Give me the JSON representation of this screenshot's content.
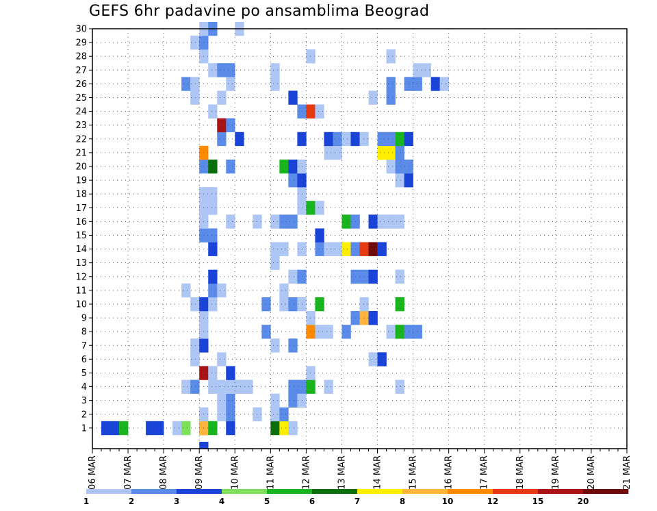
{
  "chart_data": {
    "type": "heatmap",
    "title": "GEFS 6hr padavine po ansamblima Beograd",
    "xlabel": "",
    "ylabel": "",
    "x_ticks": [
      "06 MAR",
      "07 MAR",
      "08 MAR",
      "09 MAR",
      "10 MAR",
      "11 MAR",
      "12 MAR",
      "13 MAR",
      "14 MAR",
      "15 MAR",
      "16 MAR",
      "17 MAR",
      "18 MAR",
      "19 MAR",
      "20 MAR",
      "21 MAR"
    ],
    "y_ticks": [
      "1",
      "2",
      "3",
      "4",
      "5",
      "6",
      "7",
      "8",
      "9",
      "10",
      "11",
      "12",
      "13",
      "14",
      "15",
      "16",
      "17",
      "18",
      "19",
      "20",
      "21",
      "22",
      "23",
      "24",
      "25",
      "26",
      "27",
      "28",
      "29",
      "30"
    ],
    "x_step": "6hr",
    "ensemble_members": 30,
    "grid": true,
    "legend": {
      "placement": "bottom",
      "labels": [
        "1",
        "2",
        "3",
        "4",
        "5",
        "6",
        "7",
        "8",
        "10",
        "12",
        "15",
        "20"
      ],
      "colors": [
        "#aec6f4",
        "#5b8be8",
        "#1a44d8",
        "#7ee05a",
        "#19b41e",
        "#0a6e0a",
        "#ffee00",
        "#ffb43c",
        "#ff8a00",
        "#e63a12",
        "#a81414",
        "#6e0a0a"
      ]
    },
    "cells": [
      [
        1,
        1,
        3
      ],
      [
        1,
        2,
        3
      ],
      [
        1,
        3,
        5
      ],
      [
        1,
        6,
        3
      ],
      [
        1,
        7,
        3
      ],
      [
        1,
        9,
        1
      ],
      [
        1,
        10,
        4
      ],
      [
        1,
        12,
        10
      ],
      [
        1,
        12,
        10
      ],
      [
        0,
        12,
        3
      ],
      [
        1,
        12,
        8
      ],
      [
        1,
        13,
        5
      ],
      [
        1,
        15,
        3
      ],
      [
        1,
        20,
        6
      ],
      [
        1,
        21,
        7
      ],
      [
        1,
        22,
        1
      ],
      [
        2,
        12,
        1
      ],
      [
        2,
        14,
        1
      ],
      [
        2,
        15,
        2
      ],
      [
        2,
        18,
        1
      ],
      [
        2,
        20,
        1
      ],
      [
        2,
        21,
        2
      ],
      [
        3,
        14,
        1
      ],
      [
        3,
        15,
        2
      ],
      [
        3,
        20,
        1
      ],
      [
        3,
        22,
        2
      ],
      [
        3,
        23,
        1
      ],
      [
        4,
        10,
        1
      ],
      [
        4,
        11,
        2
      ],
      [
        4,
        13,
        1
      ],
      [
        4,
        14,
        1
      ],
      [
        4,
        15,
        1
      ],
      [
        4,
        16,
        1
      ],
      [
        4,
        17,
        1
      ],
      [
        4,
        22,
        2
      ],
      [
        4,
        23,
        2
      ],
      [
        4,
        24,
        5
      ],
      [
        4,
        26,
        1
      ],
      [
        4,
        34,
        1
      ],
      [
        5,
        12,
        15
      ],
      [
        5,
        13,
        1
      ],
      [
        5,
        15,
        3
      ],
      [
        5,
        24,
        1
      ],
      [
        6,
        11,
        1
      ],
      [
        6,
        14,
        1
      ],
      [
        6,
        31,
        1
      ],
      [
        6,
        32,
        3
      ],
      [
        7,
        11,
        1
      ],
      [
        7,
        12,
        3
      ],
      [
        7,
        20,
        1
      ],
      [
        7,
        22,
        2
      ],
      [
        8,
        12,
        1
      ],
      [
        8,
        19,
        2
      ],
      [
        8,
        24,
        10
      ],
      [
        8,
        25,
        1
      ],
      [
        8,
        26,
        1
      ],
      [
        8,
        28,
        2
      ],
      [
        8,
        33,
        1
      ],
      [
        8,
        34,
        5
      ],
      [
        8,
        35,
        2
      ],
      [
        8,
        36,
        2
      ],
      [
        9,
        12,
        1
      ],
      [
        9,
        24,
        1
      ],
      [
        9,
        29,
        2
      ],
      [
        9,
        30,
        8
      ],
      [
        9,
        31,
        3
      ],
      [
        10,
        11,
        1
      ],
      [
        10,
        12,
        3
      ],
      [
        10,
        13,
        1
      ],
      [
        10,
        19,
        2
      ],
      [
        10,
        21,
        1
      ],
      [
        10,
        22,
        2
      ],
      [
        10,
        23,
        1
      ],
      [
        10,
        25,
        5
      ],
      [
        10,
        30,
        1
      ],
      [
        10,
        34,
        5
      ],
      [
        11,
        10,
        1
      ],
      [
        11,
        13,
        2
      ],
      [
        11,
        14,
        1
      ],
      [
        11,
        21,
        1
      ],
      [
        12,
        13,
        3
      ],
      [
        12,
        22,
        1
      ],
      [
        12,
        23,
        2
      ],
      [
        12,
        29,
        2
      ],
      [
        12,
        30,
        2
      ],
      [
        12,
        31,
        3
      ],
      [
        12,
        34,
        1
      ],
      [
        13,
        20,
        1
      ],
      [
        14,
        13,
        3
      ],
      [
        14,
        20,
        1
      ],
      [
        14,
        21,
        1
      ],
      [
        14,
        23,
        1
      ],
      [
        14,
        25,
        2
      ],
      [
        14,
        26,
        1
      ],
      [
        14,
        27,
        1
      ],
      [
        14,
        28,
        7
      ],
      [
        14,
        29,
        2
      ],
      [
        14,
        30,
        12
      ],
      [
        14,
        31,
        20
      ],
      [
        14,
        32,
        3
      ],
      [
        15,
        12,
        2
      ],
      [
        15,
        13,
        2
      ],
      [
        15,
        25,
        3
      ],
      [
        16,
        12,
        1
      ],
      [
        16,
        15,
        1
      ],
      [
        16,
        18,
        1
      ],
      [
        16,
        20,
        1
      ],
      [
        16,
        21,
        2
      ],
      [
        16,
        22,
        2
      ],
      [
        16,
        28,
        5
      ],
      [
        16,
        29,
        2
      ],
      [
        16,
        31,
        3
      ],
      [
        16,
        32,
        1
      ],
      [
        16,
        33,
        1
      ],
      [
        16,
        34,
        1
      ],
      [
        17,
        12,
        1
      ],
      [
        17,
        13,
        1
      ],
      [
        17,
        23,
        1
      ],
      [
        17,
        24,
        5
      ],
      [
        17,
        25,
        1
      ],
      [
        18,
        12,
        1
      ],
      [
        18,
        13,
        1
      ],
      [
        18,
        23,
        1
      ],
      [
        19,
        22,
        2
      ],
      [
        19,
        23,
        3
      ],
      [
        19,
        34,
        1
      ],
      [
        19,
        35,
        3
      ],
      [
        20,
        12,
        2
      ],
      [
        20,
        13,
        6
      ],
      [
        20,
        15,
        2
      ],
      [
        20,
        21,
        5
      ],
      [
        20,
        22,
        3
      ],
      [
        20,
        23,
        1
      ],
      [
        20,
        33,
        1
      ],
      [
        20,
        34,
        2
      ],
      [
        20,
        35,
        2
      ],
      [
        21,
        12,
        10
      ],
      [
        21,
        26,
        1
      ],
      [
        21,
        27,
        1
      ],
      [
        21,
        32,
        7
      ],
      [
        21,
        33,
        7
      ],
      [
        21,
        34,
        2
      ],
      [
        22,
        14,
        2
      ],
      [
        22,
        16,
        3
      ],
      [
        22,
        23,
        3
      ],
      [
        22,
        26,
        3
      ],
      [
        22,
        27,
        2
      ],
      [
        22,
        28,
        1
      ],
      [
        22,
        29,
        3
      ],
      [
        22,
        30,
        1
      ],
      [
        22,
        32,
        2
      ],
      [
        22,
        33,
        2
      ],
      [
        22,
        34,
        5
      ],
      [
        22,
        35,
        3
      ],
      [
        23,
        14,
        15
      ],
      [
        23,
        15,
        2
      ],
      [
        24,
        13,
        1
      ],
      [
        24,
        23,
        2
      ],
      [
        24,
        24,
        12
      ],
      [
        24,
        25,
        1
      ],
      [
        25,
        11,
        1
      ],
      [
        25,
        14,
        1
      ],
      [
        25,
        22,
        3
      ],
      [
        25,
        31,
        1
      ],
      [
        25,
        33,
        2
      ],
      [
        26,
        10,
        2
      ],
      [
        26,
        11,
        1
      ],
      [
        26,
        15,
        1
      ],
      [
        26,
        20,
        1
      ],
      [
        26,
        33,
        2
      ],
      [
        26,
        35,
        2
      ],
      [
        26,
        36,
        2
      ],
      [
        26,
        38,
        3
      ],
      [
        26,
        39,
        1
      ],
      [
        27,
        13,
        1
      ],
      [
        27,
        14,
        2
      ],
      [
        27,
        15,
        2
      ],
      [
        27,
        20,
        1
      ],
      [
        27,
        36,
        1
      ],
      [
        27,
        37,
        1
      ],
      [
        28,
        12,
        1
      ],
      [
        28,
        24,
        1
      ],
      [
        28,
        33,
        1
      ],
      [
        29,
        11,
        1
      ],
      [
        29,
        12,
        2
      ],
      [
        30,
        12,
        1
      ],
      [
        30,
        13,
        2
      ],
      [
        30,
        16,
        1
      ]
    ]
  }
}
